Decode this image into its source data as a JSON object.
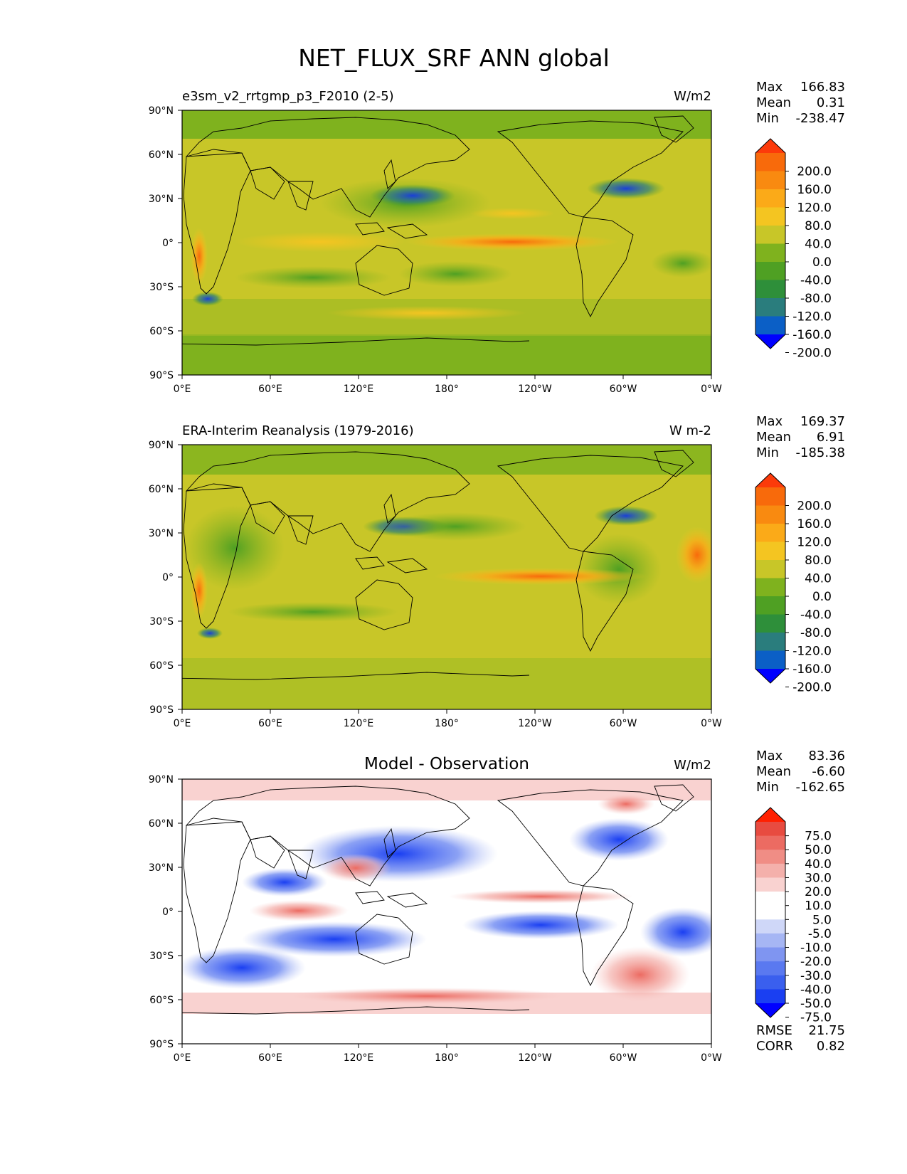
{
  "figure_title": "NET_FLUX_SRF ANN global",
  "colors": {
    "main_levels": [
      "#0000ff",
      "#0b5fc6",
      "#2a7d7d",
      "#2e8f3a",
      "#4fa023",
      "#7fb21e",
      "#c8c628",
      "#f4c521",
      "#fbaa18",
      "#f98a10",
      "#f86a0b",
      "#fc3a0a"
    ],
    "diff_levels": [
      "#0000ff",
      "#1a3ff2",
      "#3a5fee",
      "#5a79f0",
      "#7f95f1",
      "#a6b6f4",
      "#cfd7f8",
      "#ffffff",
      "#ffffff",
      "#f9d2d0",
      "#f4b0ab",
      "#f08d85",
      "#ec6b62",
      "#e84b40",
      "#ff2000"
    ]
  },
  "panels": [
    {
      "title": "e3sm_v2_rrtgmp_p3_F2010 (2-5)",
      "units": "W/m2",
      "stats": [
        {
          "label": "Max",
          "value": "166.83"
        },
        {
          "label": "Mean",
          "value": "0.31"
        },
        {
          "label": "Min",
          "value": "-238.47"
        }
      ],
      "colorbar_ticks": [
        "200.0",
        "160.0",
        "120.0",
        "80.0",
        "40.0",
        "0.0",
        "-40.0",
        "-80.0",
        "-120.0",
        "-160.0",
        "-200.0"
      ]
    },
    {
      "title": "ERA-Interim Reanalysis (1979-2016)",
      "units": "W m-2",
      "stats": [
        {
          "label": "Max",
          "value": "169.37"
        },
        {
          "label": "Mean",
          "value": "6.91"
        },
        {
          "label": "Min",
          "value": "-185.38"
        }
      ],
      "colorbar_ticks": [
        "200.0",
        "160.0",
        "120.0",
        "80.0",
        "40.0",
        "0.0",
        "-40.0",
        "-80.0",
        "-120.0",
        "-160.0",
        "-200.0"
      ]
    },
    {
      "title": "Model - Observation",
      "units": "W/m2",
      "stats": [
        {
          "label": "Max",
          "value": "83.36"
        },
        {
          "label": "Mean",
          "value": "-6.60"
        },
        {
          "label": "Min",
          "value": "-162.65"
        }
      ],
      "colorbar_ticks": [
        "75.0",
        "50.0",
        "40.0",
        "30.0",
        "20.0",
        "10.0",
        "5.0",
        "-5.0",
        "-10.0",
        "-20.0",
        "-30.0",
        "-40.0",
        "-50.0",
        "-75.0"
      ],
      "extra_stats": [
        {
          "label": "RMSE",
          "value": "21.75"
        },
        {
          "label": "CORR",
          "value": "0.82"
        }
      ]
    }
  ],
  "lat_ticks": [
    "90°N",
    "60°N",
    "30°N",
    "0°",
    "30°S",
    "60°S",
    "90°S"
  ],
  "lon_ticks": [
    "0°E",
    "60°E",
    "120°E",
    "180°",
    "120°W",
    "60°W",
    "0°W"
  ]
}
